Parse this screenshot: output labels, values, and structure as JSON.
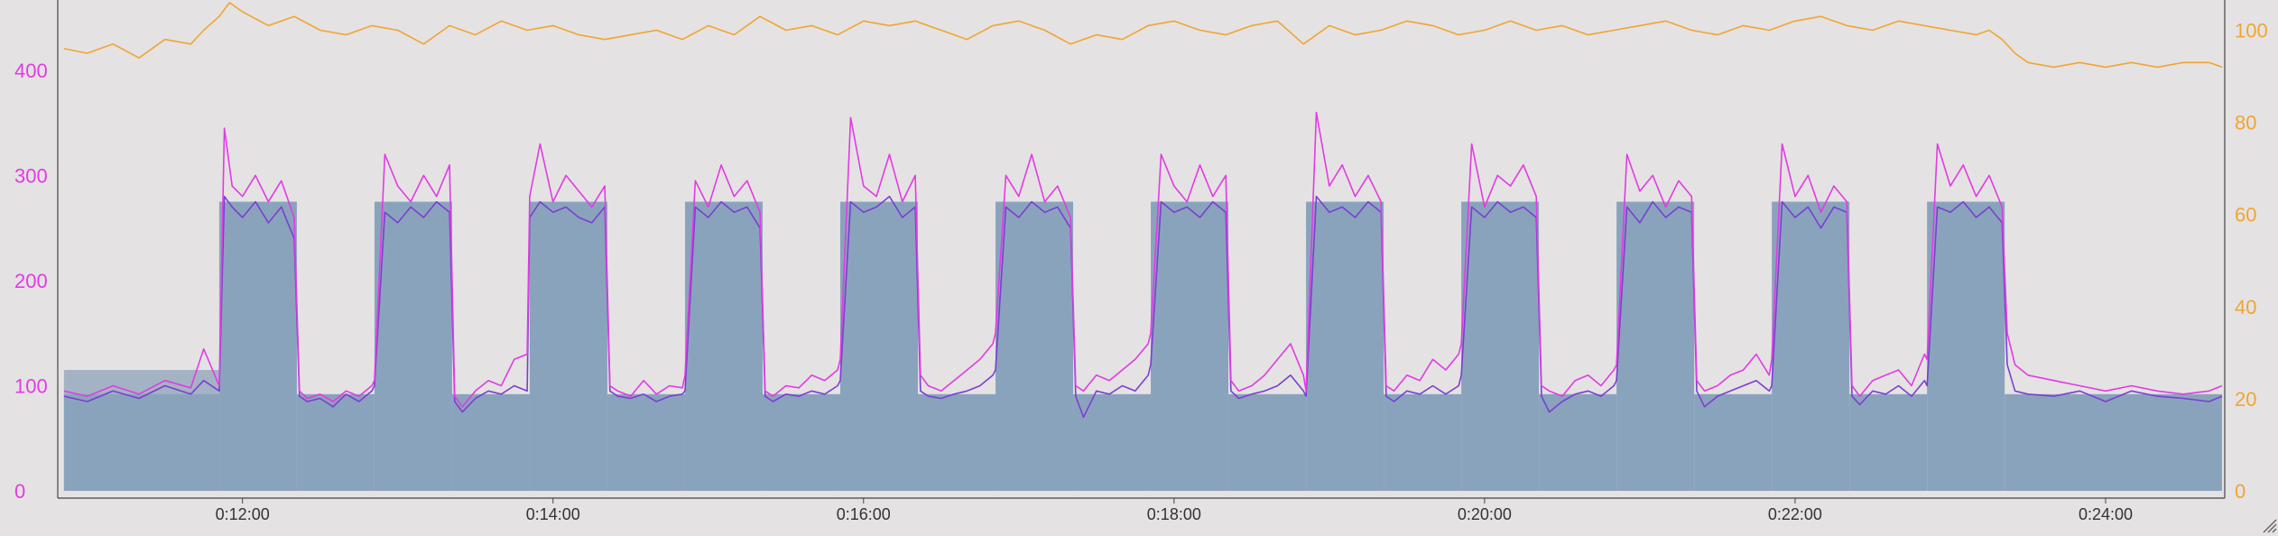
{
  "colors": {
    "background": "#e5e2e3",
    "plot_background": "#e5e2e3",
    "target_area": "#8aa3bd",
    "warmup_area": "#a3b3c4",
    "power": "#e23be3",
    "cadence": "#7a3fd1",
    "right_axis": "#f0a531",
    "left_axis": "#e23be3"
  },
  "chart_data": {
    "type": "area+line",
    "title": "",
    "xlabel": "",
    "ylabel": "",
    "x_range_seconds": [
      650,
      1485
    ],
    "xticks": [
      "0:12:00",
      "0:14:00",
      "0:16:00",
      "0:18:00",
      "0:20:00",
      "0:22:00",
      "0:24:00"
    ],
    "xtick_seconds": [
      720,
      840,
      960,
      1080,
      1200,
      1320,
      1440
    ],
    "left_axis": {
      "ylim": [
        0,
        460
      ],
      "ticks": [
        0,
        100,
        200,
        300,
        400
      ]
    },
    "right_axis": {
      "ylim": [
        0,
        105
      ],
      "ticks": [
        0,
        20,
        40,
        60,
        80,
        100
      ]
    },
    "target_blocks": [
      {
        "start": 651,
        "end": 711,
        "watts": 115
      },
      {
        "start": 711,
        "end": 741,
        "watts": 275
      },
      {
        "start": 741,
        "end": 771,
        "watts": 92
      },
      {
        "start": 771,
        "end": 801,
        "watts": 275
      },
      {
        "start": 801,
        "end": 831,
        "watts": 92
      },
      {
        "start": 831,
        "end": 861,
        "watts": 275
      },
      {
        "start": 861,
        "end": 891,
        "watts": 92
      },
      {
        "start": 891,
        "end": 921,
        "watts": 275
      },
      {
        "start": 921,
        "end": 951,
        "watts": 92
      },
      {
        "start": 951,
        "end": 981,
        "watts": 275
      },
      {
        "start": 981,
        "end": 1011,
        "watts": 92
      },
      {
        "start": 1011,
        "end": 1041,
        "watts": 275
      },
      {
        "start": 1041,
        "end": 1071,
        "watts": 92
      },
      {
        "start": 1071,
        "end": 1101,
        "watts": 275
      },
      {
        "start": 1101,
        "end": 1131,
        "watts": 92
      },
      {
        "start": 1131,
        "end": 1161,
        "watts": 275
      },
      {
        "start": 1161,
        "end": 1191,
        "watts": 92
      },
      {
        "start": 1191,
        "end": 1221,
        "watts": 275
      },
      {
        "start": 1221,
        "end": 1251,
        "watts": 92
      },
      {
        "start": 1251,
        "end": 1281,
        "watts": 275
      },
      {
        "start": 1281,
        "end": 1311,
        "watts": 92
      },
      {
        "start": 1311,
        "end": 1341,
        "watts": 275
      },
      {
        "start": 1341,
        "end": 1371,
        "watts": 92
      },
      {
        "start": 1371,
        "end": 1401,
        "watts": 275
      },
      {
        "start": 1401,
        "end": 1485,
        "watts": 92
      }
    ],
    "power_series": {
      "x": [
        651,
        660,
        670,
        680,
        690,
        700,
        705,
        711,
        713,
        716,
        720,
        725,
        730,
        735,
        740,
        742,
        745,
        750,
        755,
        760,
        765,
        770,
        771,
        775,
        780,
        785,
        790,
        795,
        800,
        802,
        805,
        810,
        815,
        820,
        825,
        830,
        831,
        835,
        840,
        845,
        850,
        855,
        860,
        862,
        865,
        870,
        875,
        880,
        885,
        890,
        891,
        895,
        900,
        905,
        910,
        915,
        920,
        922,
        925,
        930,
        935,
        940,
        945,
        950,
        951,
        955,
        960,
        965,
        970,
        975,
        980,
        982,
        985,
        990,
        995,
        1000,
        1005,
        1010,
        1011,
        1015,
        1020,
        1025,
        1030,
        1035,
        1040,
        1042,
        1045,
        1050,
        1055,
        1060,
        1065,
        1070,
        1071,
        1075,
        1080,
        1085,
        1090,
        1095,
        1100,
        1102,
        1105,
        1110,
        1115,
        1120,
        1125,
        1130,
        1131,
        1135,
        1140,
        1145,
        1150,
        1155,
        1160,
        1162,
        1165,
        1170,
        1175,
        1180,
        1185,
        1190,
        1191,
        1195,
        1200,
        1205,
        1210,
        1215,
        1220,
        1222,
        1225,
        1230,
        1235,
        1240,
        1245,
        1250,
        1251,
        1255,
        1260,
        1265,
        1270,
        1275,
        1280,
        1282,
        1285,
        1290,
        1295,
        1300,
        1305,
        1310,
        1311,
        1315,
        1320,
        1325,
        1330,
        1335,
        1340,
        1342,
        1345,
        1350,
        1355,
        1360,
        1365,
        1370,
        1371,
        1375,
        1380,
        1385,
        1390,
        1395,
        1400,
        1402,
        1405,
        1410,
        1420,
        1430,
        1440,
        1450,
        1460,
        1470,
        1480,
        1485
      ],
      "y": [
        95,
        90,
        100,
        92,
        105,
        98,
        135,
        100,
        345,
        290,
        280,
        300,
        275,
        295,
        260,
        95,
        88,
        92,
        85,
        95,
        90,
        100,
        105,
        320,
        290,
        275,
        300,
        280,
        310,
        90,
        80,
        95,
        105,
        100,
        125,
        130,
        280,
        330,
        275,
        300,
        285,
        270,
        290,
        100,
        95,
        90,
        105,
        92,
        100,
        98,
        110,
        295,
        270,
        310,
        280,
        295,
        265,
        95,
        90,
        100,
        98,
        110,
        105,
        115,
        125,
        355,
        290,
        280,
        320,
        275,
        300,
        110,
        100,
        95,
        105,
        115,
        125,
        140,
        150,
        300,
        280,
        320,
        275,
        290,
        260,
        100,
        95,
        110,
        105,
        115,
        125,
        140,
        150,
        320,
        290,
        275,
        310,
        280,
        300,
        105,
        95,
        100,
        110,
        125,
        140,
        110,
        95,
        360,
        290,
        310,
        280,
        300,
        275,
        100,
        95,
        110,
        105,
        125,
        115,
        130,
        140,
        330,
        270,
        300,
        290,
        310,
        280,
        100,
        95,
        90,
        105,
        110,
        100,
        115,
        120,
        320,
        285,
        300,
        270,
        295,
        280,
        105,
        95,
        100,
        110,
        115,
        130,
        110,
        125,
        330,
        280,
        300,
        265,
        290,
        275,
        100,
        90,
        105,
        110,
        115,
        100,
        130,
        125,
        330,
        290,
        310,
        280,
        300,
        270,
        150,
        120,
        110,
        105,
        100,
        95,
        100,
        95,
        92,
        95,
        100
      ]
    },
    "cadence_series": {
      "x": [
        651,
        660,
        670,
        680,
        690,
        700,
        705,
        711,
        713,
        716,
        720,
        725,
        730,
        735,
        740,
        742,
        745,
        750,
        755,
        760,
        765,
        770,
        771,
        775,
        780,
        785,
        790,
        795,
        800,
        802,
        805,
        810,
        815,
        820,
        825,
        830,
        831,
        835,
        840,
        845,
        850,
        855,
        860,
        862,
        865,
        870,
        875,
        880,
        885,
        890,
        891,
        895,
        900,
        905,
        910,
        915,
        920,
        922,
        925,
        930,
        935,
        940,
        945,
        950,
        951,
        955,
        960,
        965,
        970,
        975,
        980,
        982,
        985,
        990,
        995,
        1000,
        1005,
        1010,
        1011,
        1015,
        1020,
        1025,
        1030,
        1035,
        1040,
        1042,
        1045,
        1050,
        1055,
        1060,
        1065,
        1070,
        1071,
        1075,
        1080,
        1085,
        1090,
        1095,
        1100,
        1102,
        1105,
        1110,
        1115,
        1120,
        1125,
        1130,
        1131,
        1135,
        1140,
        1145,
        1150,
        1155,
        1160,
        1162,
        1165,
        1170,
        1175,
        1180,
        1185,
        1190,
        1191,
        1195,
        1200,
        1205,
        1210,
        1215,
        1220,
        1222,
        1225,
        1230,
        1235,
        1240,
        1245,
        1250,
        1251,
        1255,
        1260,
        1265,
        1270,
        1275,
        1280,
        1282,
        1285,
        1290,
        1295,
        1300,
        1305,
        1310,
        1311,
        1315,
        1320,
        1325,
        1330,
        1335,
        1340,
        1342,
        1345,
        1350,
        1355,
        1360,
        1365,
        1370,
        1371,
        1375,
        1380,
        1385,
        1390,
        1395,
        1400,
        1402,
        1405,
        1410,
        1420,
        1430,
        1440,
        1450,
        1460,
        1470,
        1480,
        1485
      ],
      "y": [
        90,
        85,
        95,
        88,
        100,
        92,
        105,
        95,
        280,
        270,
        260,
        275,
        255,
        270,
        240,
        90,
        85,
        88,
        80,
        92,
        85,
        95,
        100,
        265,
        255,
        270,
        260,
        275,
        265,
        85,
        75,
        88,
        95,
        92,
        100,
        95,
        260,
        275,
        265,
        270,
        260,
        255,
        270,
        95,
        90,
        88,
        92,
        85,
        90,
        92,
        95,
        270,
        260,
        275,
        265,
        270,
        250,
        90,
        85,
        92,
        90,
        95,
        92,
        100,
        105,
        275,
        265,
        270,
        280,
        260,
        270,
        95,
        90,
        88,
        92,
        95,
        100,
        110,
        115,
        270,
        260,
        275,
        265,
        270,
        250,
        90,
        70,
        95,
        92,
        100,
        95,
        110,
        120,
        275,
        265,
        270,
        260,
        275,
        265,
        95,
        88,
        92,
        95,
        100,
        110,
        95,
        90,
        280,
        265,
        270,
        260,
        275,
        265,
        90,
        85,
        95,
        92,
        100,
        92,
        100,
        110,
        270,
        260,
        275,
        265,
        270,
        260,
        90,
        75,
        85,
        92,
        95,
        90,
        100,
        105,
        270,
        255,
        275,
        260,
        270,
        265,
        95,
        80,
        90,
        95,
        100,
        105,
        95,
        100,
        275,
        260,
        270,
        250,
        270,
        265,
        90,
        82,
        95,
        92,
        100,
        90,
        105,
        100,
        270,
        265,
        275,
        260,
        270,
        255,
        120,
        95,
        92,
        90,
        95,
        85,
        95,
        90,
        88,
        85,
        90
      ]
    },
    "speed_series": {
      "x": [
        651,
        660,
        670,
        680,
        690,
        700,
        705,
        711,
        715,
        720,
        730,
        740,
        750,
        760,
        770,
        780,
        790,
        800,
        810,
        820,
        830,
        840,
        850,
        860,
        870,
        880,
        890,
        900,
        910,
        920,
        930,
        940,
        950,
        960,
        970,
        980,
        990,
        1000,
        1010,
        1020,
        1030,
        1040,
        1050,
        1060,
        1070,
        1080,
        1090,
        1100,
        1110,
        1120,
        1130,
        1140,
        1150,
        1160,
        1170,
        1180,
        1190,
        1200,
        1210,
        1220,
        1230,
        1240,
        1250,
        1260,
        1270,
        1280,
        1290,
        1300,
        1310,
        1320,
        1330,
        1340,
        1350,
        1360,
        1370,
        1380,
        1390,
        1395,
        1400,
        1405,
        1410,
        1420,
        1430,
        1440,
        1450,
        1460,
        1470,
        1480,
        1485
      ],
      "y": [
        96,
        95,
        97,
        94,
        98,
        97,
        100,
        103,
        106,
        104,
        101,
        103,
        100,
        99,
        101,
        100,
        97,
        101,
        99,
        102,
        100,
        101,
        99,
        98,
        99,
        100,
        98,
        101,
        99,
        103,
        100,
        101,
        99,
        102,
        101,
        102,
        100,
        98,
        101,
        102,
        100,
        97,
        99,
        98,
        101,
        102,
        100,
        99,
        101,
        102,
        97,
        101,
        99,
        100,
        102,
        101,
        99,
        100,
        102,
        100,
        101,
        99,
        100,
        101,
        102,
        100,
        99,
        101,
        100,
        102,
        103,
        101,
        100,
        102,
        101,
        100,
        99,
        100,
        98,
        95,
        93,
        92,
        93,
        92,
        93,
        92,
        93,
        93,
        92
      ]
    }
  }
}
